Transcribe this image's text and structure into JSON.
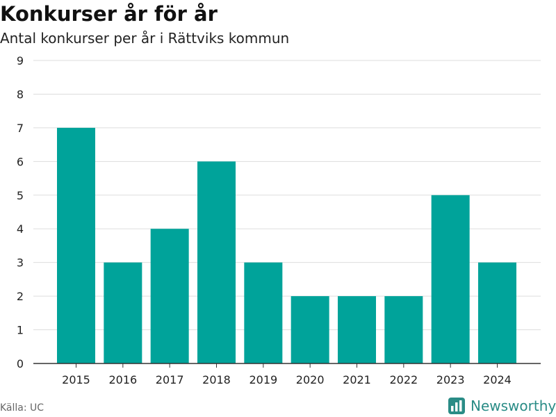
{
  "header": {
    "title": "Konkurser år för år",
    "subtitle": "Antal konkurser per år i Rättviks kommun"
  },
  "footer": {
    "source": "Källa: UC",
    "brand": "Newsworthy",
    "brand_icon": "newsworthy-logo-icon"
  },
  "colors": {
    "bar": "#00a39a",
    "grid": "#dddddd",
    "axis": "#333333",
    "brand": "#2a8c86"
  },
  "chart_data": {
    "type": "bar",
    "categories": [
      "2015",
      "2016",
      "2017",
      "2018",
      "2019",
      "2020",
      "2021",
      "2022",
      "2023",
      "2024"
    ],
    "values": [
      7,
      3,
      4,
      6,
      3,
      2,
      2,
      2,
      5,
      3
    ],
    "title": "Konkurser år för år",
    "subtitle": "Antal konkurser per år i Rättviks kommun",
    "xlabel": "",
    "ylabel": "",
    "ylim": [
      0,
      9
    ],
    "yticks": [
      0,
      1,
      2,
      3,
      4,
      5,
      6,
      7,
      8,
      9
    ],
    "grid": true,
    "legend": "none"
  }
}
